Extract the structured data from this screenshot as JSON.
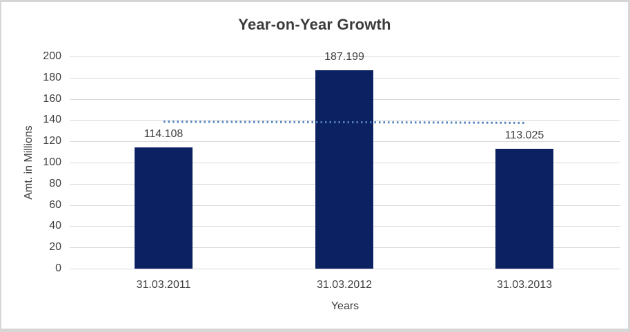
{
  "chart_data": {
    "type": "bar",
    "title": "Year-on-Year Growth",
    "xlabel": "Years",
    "ylabel": "Amt. in Millions",
    "categories": [
      "31.03.2011",
      "31.03.2012",
      "31.03.2013"
    ],
    "values": [
      114.108,
      187.199,
      113.025
    ],
    "data_labels": [
      "114.108",
      "187.199",
      "113.025"
    ],
    "ylim": [
      0,
      200
    ],
    "ytick_step": 20,
    "ytick_labels": [
      "0",
      "20",
      "40",
      "60",
      "80",
      "100",
      "120",
      "140",
      "160",
      "180",
      "200"
    ],
    "grid": true,
    "legend": "none",
    "bar_color": "#0b2161",
    "gridline_color": "#d9d9d9",
    "text_color": "#404040",
    "trendline": {
      "type": "linear",
      "style": "dotted",
      "color": "#4f81bd",
      "values": [
        138.65,
        138.11,
        137.57
      ]
    }
  }
}
